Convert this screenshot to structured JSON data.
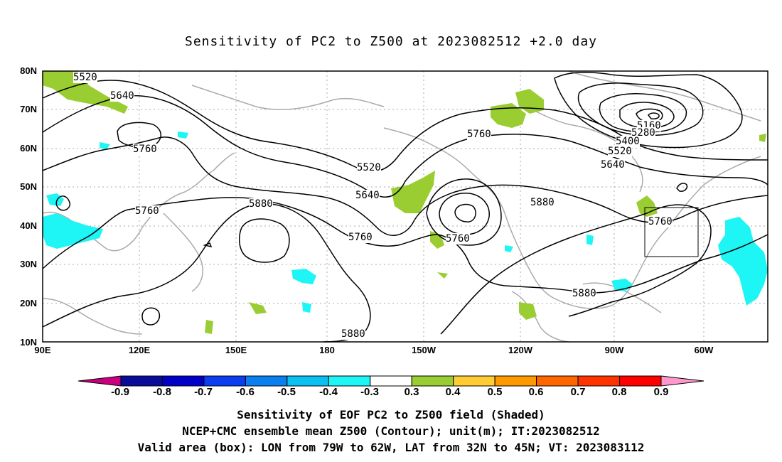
{
  "title": "Sensitivity of PC2 to Z500 at 2023082512 +2.0 day",
  "axes": {
    "lat_ticks": [
      "10N",
      "20N",
      "30N",
      "40N",
      "50N",
      "60N",
      "70N",
      "80N"
    ],
    "lon_ticks": [
      "90E",
      "120E",
      "150E",
      "180",
      "150W",
      "120W",
      "90W",
      "60W"
    ]
  },
  "contour_labels": [
    "5520",
    "5640",
    "5760",
    "5760",
    "5880",
    "5760",
    "5520",
    "5640",
    "5760",
    "5760",
    "5880",
    "5880",
    "5880",
    "5760",
    "5160",
    "5280",
    "5400",
    "5520",
    "5640",
    "5760"
  ],
  "colorbar": {
    "labels": [
      "-0.9",
      "-0.8",
      "-0.7",
      "-0.6",
      "-0.5",
      "-0.4",
      "-0.3",
      "0.3",
      "0.4",
      "0.5",
      "0.6",
      "0.7",
      "0.8",
      "0.9"
    ],
    "colors": [
      "#c8007f",
      "#0b0b9a",
      "#0000c8",
      "#0a3ef0",
      "#0a7ff0",
      "#0ac0f0",
      "#1ef5f5",
      "#ffffff",
      "#9acd32",
      "#ffcc33",
      "#ff9900",
      "#ff6600",
      "#ff3300",
      "#ff0000",
      "#ff99cc"
    ]
  },
  "captions": {
    "line1": "Sensitivity of EOF PC2 to Z500 field (Shaded)",
    "line2": "NCEP+CMC ensemble mean Z500 (Contour); unit(m); IT:2023082512",
    "line3": "Valid area (box): LON from 79W to 62W, LAT from 32N to 45N; VT: 2023083112"
  },
  "colors": {
    "contour": "#000000",
    "coast": "#aaaaaa",
    "grid": "#aaaaaa",
    "positive": "#9acd32",
    "negative": "#1ef5f5"
  }
}
